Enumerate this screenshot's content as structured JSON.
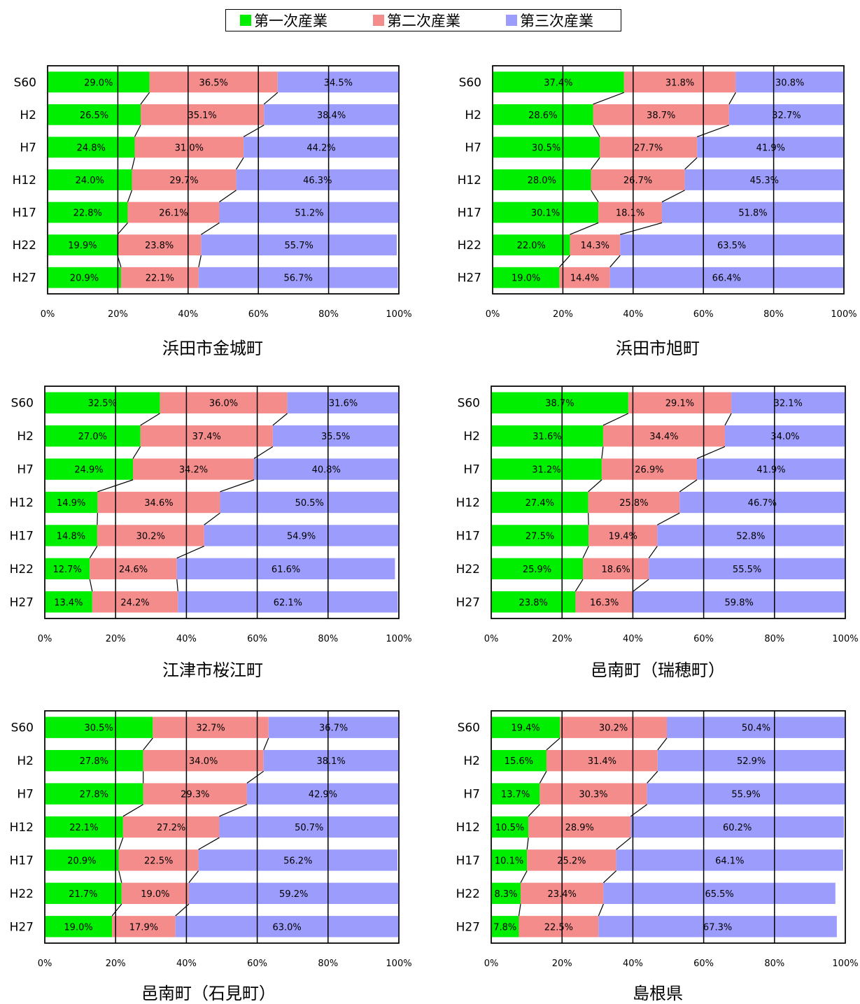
{
  "legend": {
    "items": [
      {
        "label": "第一次産業",
        "color": "#00ee00"
      },
      {
        "label": "第二次産業",
        "color": "#f58c8c"
      },
      {
        "label": "第三次産業",
        "color": "#9c9cfc"
      }
    ]
  },
  "chart_data": [
    {
      "type": "bar",
      "orientation": "horizontal-stacked-100",
      "title": "浜田市金城町",
      "categories": [
        "S60",
        "H2",
        "H7",
        "H12",
        "H17",
        "H22",
        "H27"
      ],
      "series": [
        {
          "name": "第一次産業",
          "values": [
            29.0,
            26.5,
            24.8,
            24.0,
            22.8,
            19.9,
            20.9
          ],
          "labels": [
            "29.0%",
            "26.5%",
            "24.8%",
            "24.0%",
            "22.8%",
            "19.9%",
            "20.9%"
          ]
        },
        {
          "name": "第二次産業",
          "values": [
            36.5,
            35.1,
            31.0,
            29.7,
            26.1,
            23.8,
            22.1
          ],
          "labels": [
            "36.5%",
            "35.1%",
            "31.0%",
            "29.7%",
            "26.1%",
            "23.8%",
            "22.1%"
          ]
        },
        {
          "name": "第三次産業",
          "values": [
            34.5,
            38.4,
            44.2,
            46.3,
            51.2,
            55.7,
            56.7
          ],
          "labels": [
            "34.5%",
            "38.4%",
            "44.2%",
            "46.3%",
            "51.2%",
            "55.7%",
            "56.7%"
          ]
        }
      ],
      "xticks": [
        "0%",
        "20%",
        "40%",
        "60%",
        "80%",
        "100%"
      ],
      "xlim": [
        0,
        100
      ]
    },
    {
      "type": "bar",
      "orientation": "horizontal-stacked-100",
      "title": "浜田市旭町",
      "categories": [
        "S60",
        "H2",
        "H7",
        "H12",
        "H17",
        "H22",
        "H27"
      ],
      "series": [
        {
          "name": "第一次産業",
          "values": [
            37.4,
            28.6,
            30.5,
            28.0,
            30.1,
            22.0,
            19.0
          ],
          "labels": [
            "37.4%",
            "28.6%",
            "30.5%",
            "28.0%",
            "30.1%",
            "22.0%",
            "19.0%"
          ]
        },
        {
          "name": "第二次産業",
          "values": [
            31.8,
            38.7,
            27.7,
            26.7,
            18.1,
            14.3,
            14.4
          ],
          "labels": [
            "31.8%",
            "38.7%",
            "27.7%",
            "26.7%",
            "18.1%",
            "14.3%",
            "14.4%"
          ]
        },
        {
          "name": "第三次産業",
          "values": [
            30.8,
            32.7,
            41.9,
            45.3,
            51.8,
            63.5,
            66.4
          ],
          "labels": [
            "30.8%",
            "32.7%",
            "41.9%",
            "45.3%",
            "51.8%",
            "63.5%",
            "66.4%"
          ]
        }
      ],
      "xticks": [
        "0%",
        "20%",
        "40%",
        "60%",
        "80%",
        "100%"
      ],
      "xlim": [
        0,
        100
      ]
    },
    {
      "type": "bar",
      "orientation": "horizontal-stacked-100",
      "title": "江津市桜江町",
      "categories": [
        "S60",
        "H2",
        "H7",
        "H12",
        "H17",
        "H22",
        "H27"
      ],
      "series": [
        {
          "name": "第一次産業",
          "values": [
            32.5,
            27.0,
            24.9,
            14.9,
            14.8,
            12.7,
            13.4
          ],
          "labels": [
            "32.5%",
            "27.0%",
            "24.9%",
            "14.9%",
            "14.8%",
            "12.7%",
            "13.4%"
          ]
        },
        {
          "name": "第二次産業",
          "values": [
            36.0,
            37.4,
            34.2,
            34.6,
            30.2,
            24.6,
            24.2
          ],
          "labels": [
            "36.0%",
            "37.4%",
            "34.2%",
            "34.6%",
            "30.2%",
            "24.6%",
            "24.2%"
          ]
        },
        {
          "name": "第三次産業",
          "values": [
            31.6,
            35.5,
            40.8,
            50.5,
            54.9,
            61.6,
            62.1
          ],
          "labels": [
            "31.6%",
            "35.5%",
            "40.8%",
            "50.5%",
            "54.9%",
            "61.6%",
            "62.1%"
          ]
        }
      ],
      "xticks": [
        "0%",
        "20%",
        "40%",
        "60%",
        "80%",
        "100%"
      ],
      "xlim": [
        0,
        100
      ]
    },
    {
      "type": "bar",
      "orientation": "horizontal-stacked-100",
      "title": "邑南町（瑞穂町）",
      "categories": [
        "S60",
        "H2",
        "H7",
        "H12",
        "H17",
        "H22",
        "H27"
      ],
      "series": [
        {
          "name": "第一次産業",
          "values": [
            38.7,
            31.6,
            31.2,
            27.4,
            27.5,
            25.9,
            23.8
          ],
          "labels": [
            "38.7%",
            "31.6%",
            "31.2%",
            "27.4%",
            "27.5%",
            "25.9%",
            "23.8%"
          ]
        },
        {
          "name": "第二次産業",
          "values": [
            29.1,
            34.4,
            26.9,
            25.8,
            19.4,
            18.6,
            16.3
          ],
          "labels": [
            "29.1%",
            "34.4%",
            "26.9%",
            "25.8%",
            "19.4%",
            "18.6%",
            "16.3%"
          ]
        },
        {
          "name": "第三次産業",
          "values": [
            32.1,
            34.0,
            41.9,
            46.7,
            52.8,
            55.5,
            59.8
          ],
          "labels": [
            "32.1%",
            "34.0%",
            "41.9%",
            "46.7%",
            "52.8%",
            "55.5%",
            "59.8%"
          ]
        }
      ],
      "xticks": [
        "0%",
        "20%",
        "40%",
        "60%",
        "80%",
        "100%"
      ],
      "xlim": [
        0,
        100
      ]
    },
    {
      "type": "bar",
      "orientation": "horizontal-stacked-100",
      "title": "邑南町（石見町）",
      "categories": [
        "S60",
        "H2",
        "H7",
        "H12",
        "H17",
        "H22",
        "H27"
      ],
      "series": [
        {
          "name": "第一次産業",
          "values": [
            30.5,
            27.8,
            27.8,
            22.1,
            20.9,
            21.7,
            19.0
          ],
          "labels": [
            "30.5%",
            "27.8%",
            "27.8%",
            "22.1%",
            "20.9%",
            "21.7%",
            "19.0%"
          ]
        },
        {
          "name": "第二次産業",
          "values": [
            32.7,
            34.0,
            29.3,
            27.2,
            22.5,
            19.0,
            17.9
          ],
          "labels": [
            "32.7%",
            "34.0%",
            "29.3%",
            "27.2%",
            "22.5%",
            "19.0%",
            "17.9%"
          ]
        },
        {
          "name": "第三次産業",
          "values": [
            36.7,
            38.1,
            42.9,
            50.7,
            56.2,
            59.2,
            63.0
          ],
          "labels": [
            "36.7%",
            "38.1%",
            "42.9%",
            "50.7%",
            "56.2%",
            "59.2%",
            "63.0%"
          ]
        }
      ],
      "xticks": [
        "0%",
        "20%",
        "40%",
        "60%",
        "80%",
        "100%"
      ],
      "xlim": [
        0,
        100
      ]
    },
    {
      "type": "bar",
      "orientation": "horizontal-stacked-100",
      "title": "島根県",
      "categories": [
        "S60",
        "H2",
        "H7",
        "H12",
        "H17",
        "H22",
        "H27"
      ],
      "series": [
        {
          "name": "第一次産業",
          "values": [
            19.4,
            15.6,
            13.7,
            10.5,
            10.1,
            8.3,
            7.8
          ],
          "labels": [
            "19.4%",
            "15.6%",
            "13.7%",
            "10.5%",
            "10.1%",
            "8.3%",
            "7.8%"
          ]
        },
        {
          "name": "第二次産業",
          "values": [
            30.2,
            31.4,
            30.3,
            28.9,
            25.2,
            23.4,
            22.5
          ],
          "labels": [
            "30.2%",
            "31.4%",
            "30.3%",
            "28.9%",
            "25.2%",
            "23.4%",
            "22.5%"
          ]
        },
        {
          "name": "第三次産業",
          "values": [
            50.4,
            52.9,
            55.9,
            60.2,
            64.1,
            65.5,
            67.3
          ],
          "labels": [
            "50.4%",
            "52.9%",
            "55.9%",
            "60.2%",
            "64.1%",
            "65.5%",
            "67.3%"
          ]
        }
      ],
      "xticks": [
        "0%",
        "20%",
        "40%",
        "60%",
        "80%",
        "100%"
      ],
      "xlim": [
        0,
        100
      ]
    }
  ]
}
